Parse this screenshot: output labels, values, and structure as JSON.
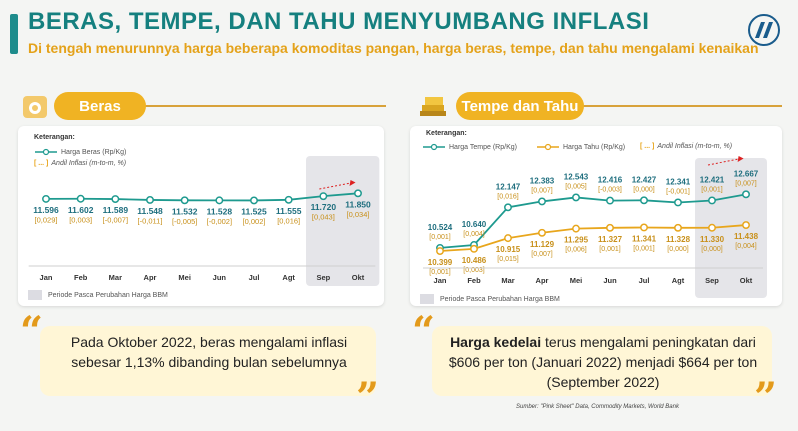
{
  "header": {
    "title": "BERAS, TEMPE, DAN TAHU MENYUMBANG INFLASI",
    "subtitle": "Di tengah menurunnya harga beberapa komoditas pangan, harga beras, tempe, dan tahu mengalami kenaikan"
  },
  "colors": {
    "teal": "#1e9a8f",
    "gold": "#e8a61c",
    "title": "#15807f",
    "shade": "#dcdce2"
  },
  "left_panel": {
    "heading": "Beras",
    "icon": "rice-sack-icon",
    "legend_title": "Keterangan:",
    "legend_series": "Harga Beras (Rp/Kg)",
    "legend_bracket": "[ ... ]",
    "legend_inflation": "Andil Inflasi (m-to-m, %)",
    "footnote": "Periode Pasca Perubahan Harga BBM",
    "quote": "Pada Oktober 2022, beras mengalami inflasi sebesar 1,13% dibanding bulan sebelumnya"
  },
  "right_panel": {
    "heading": "Tempe dan Tahu",
    "icon": "tempe-blocks-icon",
    "legend_title": "Keterangan:",
    "legend_series_1": "Harga Tempe (Rp/Kg)",
    "legend_series_2": "Harga Tahu (Rp/Kg)",
    "legend_bracket": "[ ... ]",
    "legend_inflation": "Andil Inflasi (m-to-m, %)",
    "footnote": "Periode Pasca Perubahan Harga BBM",
    "quote_bold": "Harga kedelai",
    "quote_rest": " terus mengalami peningkatan dari $606 per ton (Januari  2022) menjadi $664 per ton (September 2022)",
    "source": "Sumber: \"Pink Sheet\" Data, Commodity Markets, World Bank"
  },
  "chart_data": [
    {
      "type": "line",
      "categories": [
        "Jan",
        "Feb",
        "Mar",
        "Apr",
        "Mei",
        "Jun",
        "Jul",
        "Agt",
        "Sep",
        "Okt"
      ],
      "series": [
        {
          "name": "Harga Beras (Rp/Kg)",
          "color": "#1e9a8f",
          "values": [
            11596,
            11602,
            11589,
            11548,
            11532,
            11528,
            11525,
            11555,
            11720,
            11850
          ],
          "labels": [
            "11.596",
            "11.602",
            "11.589",
            "11.548",
            "11.532",
            "11.528",
            "11.525",
            "11.555",
            "11.720",
            "11.850"
          ],
          "inflation_labels": [
            "[0,029]",
            "[0,003]",
            "[-0,007]",
            "[-0,011]",
            "[-0,005]",
            "[-0,002]",
            "[0,002]",
            "[0,016]",
            "[0,043]",
            "[0,034]"
          ]
        }
      ],
      "shaded_categories": [
        "Sep",
        "Okt"
      ],
      "trend_arrow": true,
      "ylim": [
        11000,
        12000
      ]
    },
    {
      "type": "line",
      "categories": [
        "Jan",
        "Feb",
        "Mar",
        "Apr",
        "Mei",
        "Jun",
        "Jul",
        "Agt",
        "Sep",
        "Okt"
      ],
      "series": [
        {
          "name": "Harga Tempe (Rp/Kg)",
          "color": "#1e9a8f",
          "values": [
            10524,
            10640,
            12147,
            12383,
            12543,
            12416,
            12427,
            12341,
            12421,
            12667
          ],
          "labels": [
            "10.524",
            "10.640",
            "12.147",
            "12.383",
            "12.543",
            "12.416",
            "12.427",
            "12.341",
            "12.421",
            "12.667"
          ],
          "inflation_labels": [
            "[0,001]",
            "[0,004]",
            "[0,016]",
            "[0,007]",
            "[0,005]",
            "[-0,003]",
            "[0,000]",
            "[-0,001]",
            "[0,001]",
            "[0,007]"
          ]
        },
        {
          "name": "Harga Tahu (Rp/Kg)",
          "color": "#e8a61c",
          "values": [
            10399,
            10486,
            10915,
            11129,
            11295,
            11327,
            11341,
            11328,
            11330,
            11438
          ],
          "labels": [
            "10.399",
            "10.486",
            "10.915",
            "11.129",
            "11.295",
            "11.327",
            "11.341",
            "11.328",
            "11.330",
            "11.438"
          ],
          "inflation_labels": [
            "[0,001]",
            "[0,003]",
            "[0,015]",
            "[0,007]",
            "[0,006]",
            "[0,001]",
            "[0,001]",
            "[0,000]",
            "[0,000]",
            "[0,004]"
          ]
        }
      ],
      "shaded_categories": [
        "Sep",
        "Okt"
      ],
      "trend_arrow": true,
      "ylim": [
        9800,
        13400
      ]
    }
  ]
}
